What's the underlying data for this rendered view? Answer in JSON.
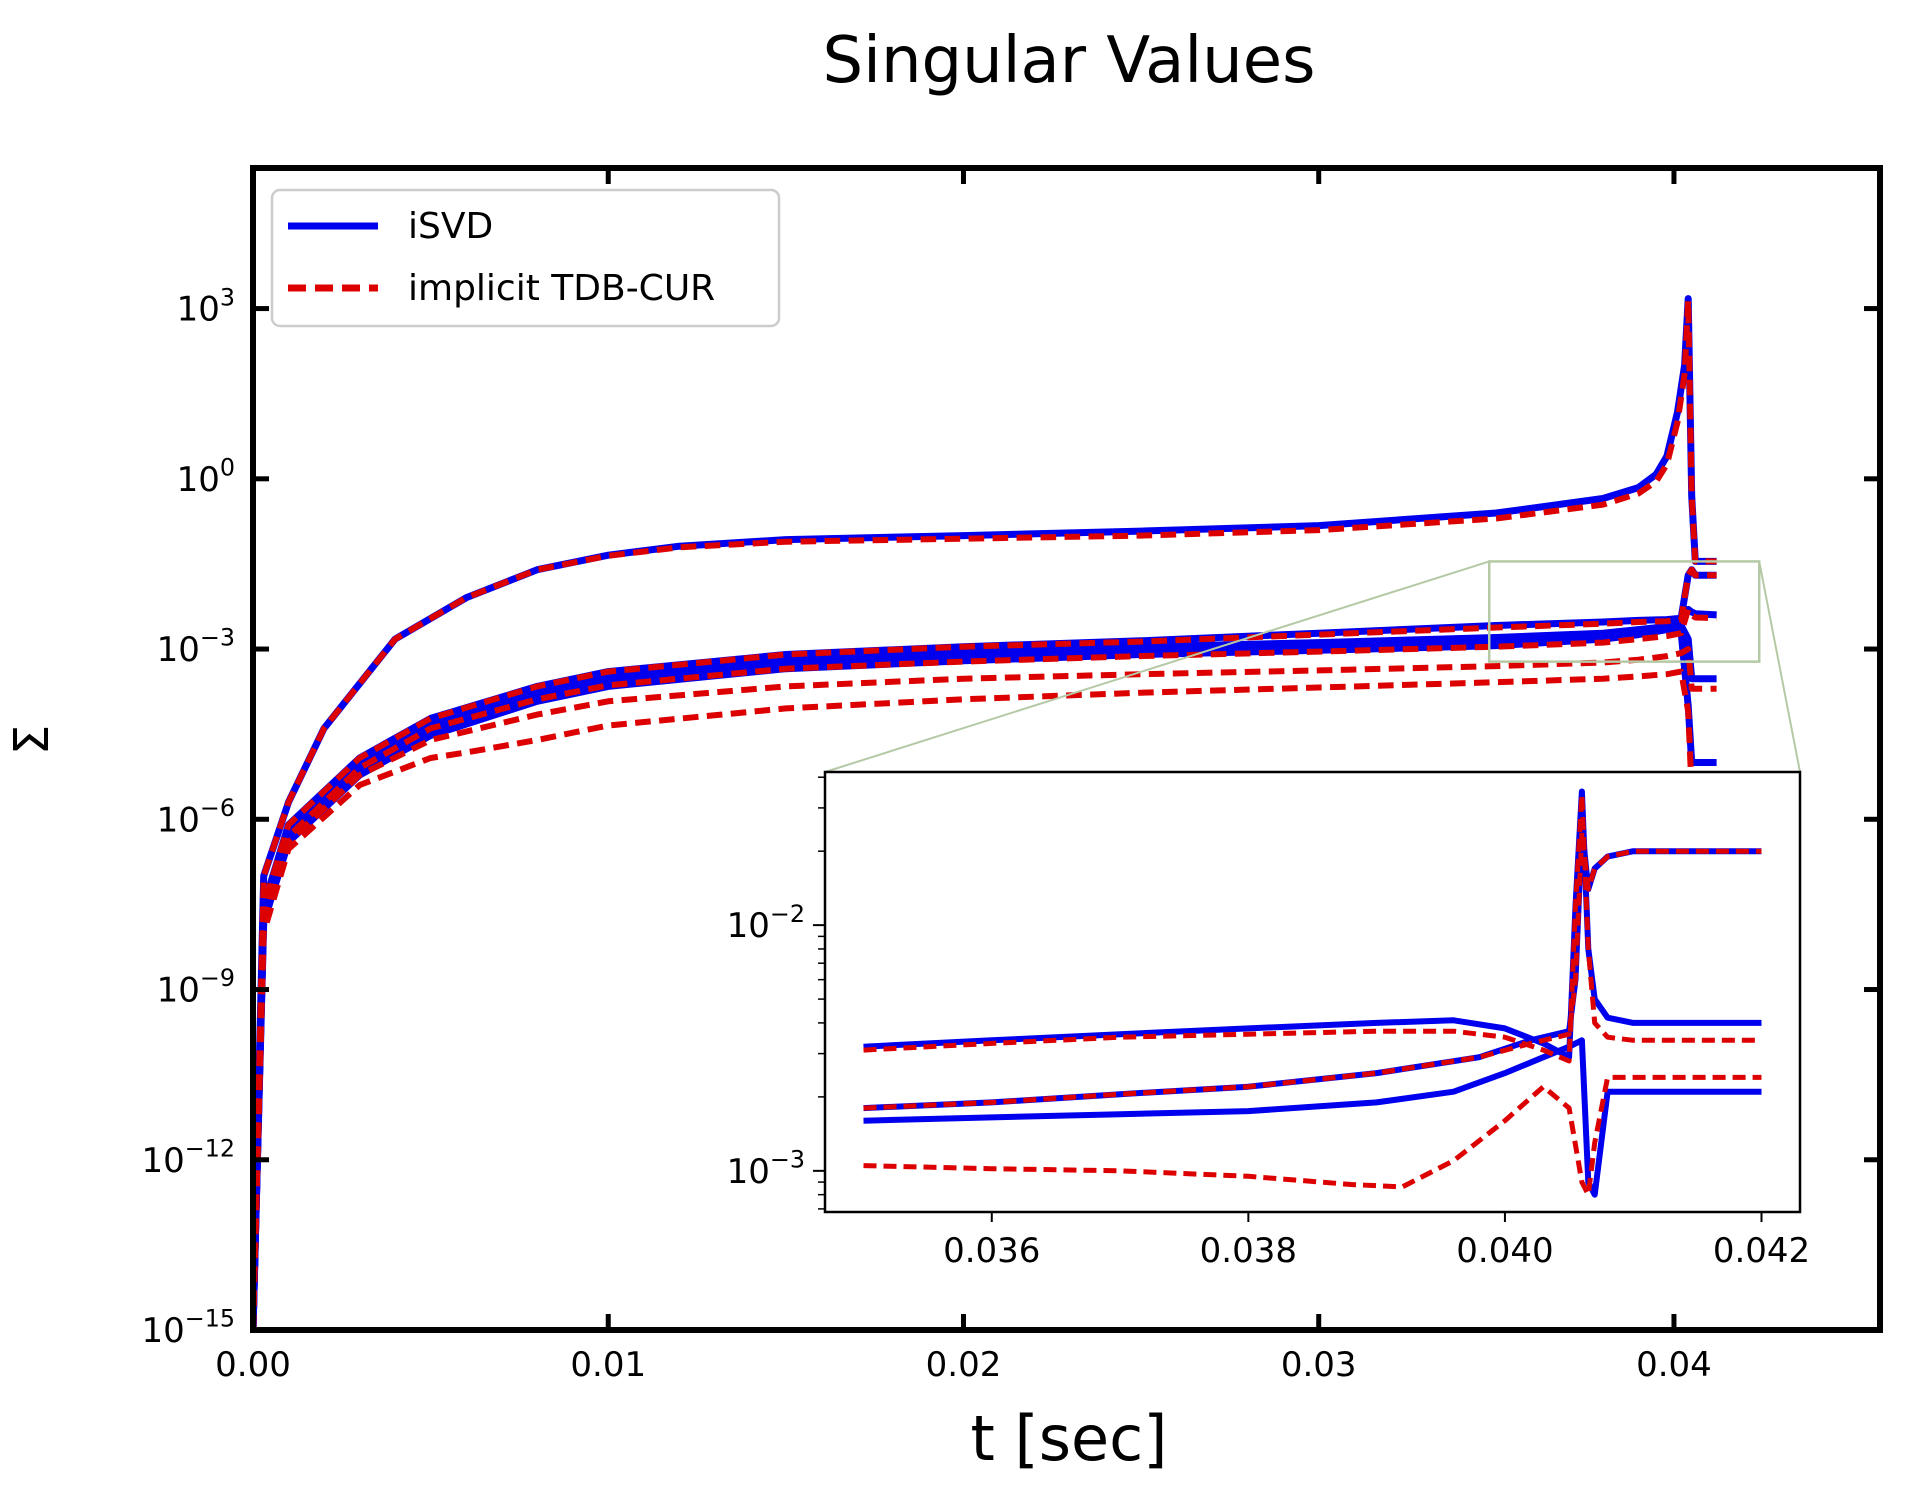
{
  "chart_data": {
    "type": "line",
    "title": "Singular Values",
    "xlabel": "t [sec]",
    "ylabel": "Σ",
    "yscale": "log",
    "xlim": [
      0.0,
      0.0458
    ],
    "ylim": [
      1e-15,
      300000.0
    ],
    "x_ticks": [
      0.0,
      0.01,
      0.02,
      0.03,
      0.04
    ],
    "x_tick_labels": [
      "0.00",
      "0.01",
      "0.02",
      "0.03",
      "0.04"
    ],
    "y_ticks": [
      1e-15,
      1e-12,
      1e-09,
      1e-06,
      0.001,
      1,
      1000.0
    ],
    "y_tick_labels": [
      {
        "base": "10",
        "exp": "−15"
      },
      {
        "base": "10",
        "exp": "−12"
      },
      {
        "base": "10",
        "exp": "−9"
      },
      {
        "base": "10",
        "exp": "−6"
      },
      {
        "base": "10",
        "exp": "−3"
      },
      {
        "base": "10",
        "exp": "0"
      },
      {
        "base": "10",
        "exp": "3"
      }
    ],
    "legend": {
      "position": "top-left",
      "entries": [
        {
          "label": "iSVD",
          "color": "#0000ee",
          "style": "solid"
        },
        {
          "label": "implicit TDB-CUR",
          "color": "#dd0000",
          "style": "dashed"
        }
      ]
    },
    "series": [
      {
        "name": "iSVD σ1",
        "style": "solid",
        "color": "#0000ee",
        "x": [
          0,
          0.0003,
          0.001,
          0.002,
          0.004,
          0.006,
          0.008,
          0.01,
          0.012,
          0.015,
          0.02,
          0.025,
          0.03,
          0.035,
          0.038,
          0.039,
          0.0395,
          0.0398,
          0.0401,
          0.0403,
          0.0404,
          0.0405,
          0.0406,
          0.0412
        ],
        "y": [
          1e-15,
          1e-07,
          2e-06,
          4e-05,
          0.0015,
          0.008,
          0.025,
          0.045,
          0.065,
          0.085,
          0.1,
          0.12,
          0.15,
          0.25,
          0.45,
          0.7,
          1.2,
          2.5,
          15,
          100,
          1500,
          0.5,
          0.035,
          0.035
        ]
      },
      {
        "name": "iSVD σ2",
        "style": "solid",
        "color": "#0000ee",
        "x": [
          0,
          0.0003,
          0.001,
          0.003,
          0.005,
          0.008,
          0.01,
          0.015,
          0.02,
          0.025,
          0.03,
          0.035,
          0.038,
          0.039,
          0.0398,
          0.0402,
          0.0404,
          0.0405,
          0.0406,
          0.0412
        ],
        "y": [
          1e-15,
          3e-08,
          8e-07,
          1.2e-05,
          6e-05,
          0.00022,
          0.0004,
          0.0008,
          0.0011,
          0.0014,
          0.0019,
          0.0026,
          0.003,
          0.0032,
          0.0033,
          0.0035,
          0.02,
          0.025,
          0.02,
          0.02
        ]
      },
      {
        "name": "iSVD σ3",
        "style": "solid",
        "color": "#0000ee",
        "x": [
          0,
          0.0003,
          0.001,
          0.003,
          0.005,
          0.008,
          0.01,
          0.015,
          0.02,
          0.025,
          0.03,
          0.035,
          0.038,
          0.039,
          0.0398,
          0.0402,
          0.0404,
          0.0405,
          0.0406,
          0.0412
        ],
        "y": [
          1e-15,
          2.5e-08,
          6e-07,
          1e-05,
          5e-05,
          0.00018,
          0.00032,
          0.00065,
          0.0009,
          0.0011,
          0.0013,
          0.0016,
          0.0019,
          0.0022,
          0.0025,
          0.0028,
          0.005,
          0.0045,
          0.0042,
          0.004
        ]
      },
      {
        "name": "iSVD σ4",
        "style": "solid",
        "color": "#0000ee",
        "x": [
          0,
          0.0003,
          0.001,
          0.003,
          0.005,
          0.008,
          0.01,
          0.015,
          0.02,
          0.025,
          0.03,
          0.035,
          0.038,
          0.039,
          0.0398,
          0.0402,
          0.0404,
          0.0405,
          0.0406,
          0.0412
        ],
        "y": [
          1e-15,
          2e-08,
          5e-07,
          8e-06,
          4e-05,
          0.00015,
          0.00027,
          0.00055,
          0.00075,
          0.00095,
          0.0011,
          0.00135,
          0.0017,
          0.002,
          0.0024,
          0.0026,
          0.0015,
          0.0003,
          0.0003,
          0.0003
        ]
      },
      {
        "name": "iSVD σ5",
        "style": "solid",
        "color": "#0000ee",
        "x": [
          0,
          0.0003,
          0.001,
          0.003,
          0.005,
          0.008,
          0.01,
          0.015,
          0.02,
          0.025,
          0.03,
          0.035,
          0.038,
          0.039,
          0.0398,
          0.0402,
          0.0404,
          0.0405,
          0.0406,
          0.0412
        ],
        "y": [
          1e-15,
          1.5e-08,
          4e-07,
          6e-06,
          3e-05,
          0.00012,
          0.00022,
          0.00045,
          0.00062,
          0.0008,
          0.00095,
          0.00115,
          0.0015,
          0.0018,
          0.0022,
          0.002,
          0.0001,
          1e-05,
          1e-05,
          1e-05
        ]
      },
      {
        "name": "TDB-CUR σ1",
        "style": "dashed",
        "color": "#dd0000",
        "x": [
          0,
          0.0003,
          0.001,
          0.002,
          0.004,
          0.006,
          0.008,
          0.01,
          0.012,
          0.015,
          0.02,
          0.025,
          0.03,
          0.035,
          0.038,
          0.039,
          0.0395,
          0.0398,
          0.0401,
          0.0403,
          0.0404,
          0.0405,
          0.0406,
          0.0412
        ],
        "y": [
          1e-15,
          1e-07,
          2e-06,
          4e-05,
          0.0015,
          0.008,
          0.025,
          0.044,
          0.062,
          0.078,
          0.088,
          0.1,
          0.125,
          0.2,
          0.35,
          0.55,
          0.9,
          1.8,
          10,
          70,
          1400,
          0.5,
          0.035,
          0.035
        ]
      },
      {
        "name": "TDB-CUR σ2",
        "style": "dashed",
        "color": "#dd0000",
        "x": [
          0,
          0.0003,
          0.001,
          0.003,
          0.005,
          0.008,
          0.01,
          0.015,
          0.02,
          0.025,
          0.03,
          0.035,
          0.038,
          0.039,
          0.0398,
          0.0402,
          0.0404,
          0.0405,
          0.0406,
          0.0412
        ],
        "y": [
          1e-15,
          3e-08,
          8e-07,
          1.2e-05,
          6e-05,
          0.00022,
          0.0004,
          0.0008,
          0.0011,
          0.00135,
          0.0018,
          0.0024,
          0.0028,
          0.003,
          0.0031,
          0.0033,
          0.02,
          0.025,
          0.02,
          0.02
        ]
      },
      {
        "name": "TDB-CUR σ3",
        "style": "dashed",
        "color": "#dd0000",
        "x": [
          0,
          0.0003,
          0.001,
          0.003,
          0.005,
          0.008,
          0.01,
          0.015,
          0.02,
          0.025,
          0.03,
          0.035,
          0.038,
          0.039,
          0.0398,
          0.0402,
          0.0404,
          0.0405,
          0.0406,
          0.0412
        ],
        "y": [
          1e-15,
          2e-08,
          5e-07,
          8e-06,
          4e-05,
          0.00013,
          0.00023,
          0.00045,
          0.0006,
          0.00075,
          0.0009,
          0.0011,
          0.0013,
          0.0015,
          0.0017,
          0.0019,
          0.005,
          0.004,
          0.0036,
          0.0035
        ]
      },
      {
        "name": "TDB-CUR σ4",
        "style": "dashed",
        "color": "#dd0000",
        "x": [
          0,
          0.0003,
          0.001,
          0.003,
          0.005,
          0.008,
          0.01,
          0.015,
          0.02,
          0.025,
          0.03,
          0.035,
          0.038,
          0.039,
          0.0398,
          0.0402,
          0.0404,
          0.0405,
          0.0406,
          0.0412
        ],
        "y": [
          1e-15,
          1.5e-08,
          4e-07,
          6e-06,
          2.5e-05,
          7e-05,
          0.00012,
          0.00022,
          0.0003,
          0.00036,
          0.00042,
          0.0005,
          0.00058,
          0.00065,
          0.00075,
          0.00085,
          0.001,
          0.0002,
          0.0002,
          0.0002
        ]
      },
      {
        "name": "TDB-CUR σ5",
        "style": "dashed",
        "color": "#dd0000",
        "x": [
          0,
          0.0003,
          0.001,
          0.003,
          0.005,
          0.006,
          0.008,
          0.01,
          0.015,
          0.02,
          0.025,
          0.03,
          0.035,
          0.038,
          0.039,
          0.0398,
          0.0402,
          0.0404,
          0.0405,
          0.0406,
          0.0412
        ],
        "y": [
          1e-15,
          1e-08,
          3e-07,
          4e-06,
          1.2e-05,
          1.5e-05,
          2.5e-05,
          4.5e-05,
          9e-05,
          0.00013,
          0.00017,
          0.00021,
          0.00026,
          0.0003,
          0.00033,
          0.00036,
          0.0004,
          8e-05,
          3e-06,
          3e-06,
          3e-06
        ]
      }
    ],
    "inset": {
      "yscale": "log",
      "xlim": [
        0.0347,
        0.0423
      ],
      "ylim": [
        0.00068,
        0.042
      ],
      "x_ticks": [
        0.036,
        0.038,
        0.04,
        0.042
      ],
      "x_tick_labels": [
        "0.036",
        "0.038",
        "0.040",
        "0.042"
      ],
      "y_ticks": [
        0.001,
        0.01
      ],
      "y_tick_labels": [
        {
          "base": "10",
          "exp": "−3"
        },
        {
          "base": "10",
          "exp": "−2"
        }
      ],
      "zoom_region": {
        "x": [
          0.0348,
          0.0424
        ],
        "y": [
          0.0006,
          0.035
        ]
      },
      "series": [
        {
          "name": "iSVD a",
          "style": "solid",
          "color": "#0000ee",
          "x": [
            0.035,
            0.036,
            0.037,
            0.038,
            0.039,
            0.0396,
            0.04,
            0.0403,
            0.0405,
            0.04055,
            0.0406,
            0.04065,
            0.0407,
            0.0408,
            0.041,
            0.0415,
            0.042
          ],
          "y": [
            0.0032,
            0.0034,
            0.0036,
            0.0038,
            0.004,
            0.0041,
            0.0038,
            0.0033,
            0.0029,
            0.012,
            0.035,
            0.008,
            0.005,
            0.0042,
            0.004,
            0.004,
            0.004
          ]
        },
        {
          "name": "iSVD b",
          "style": "solid",
          "color": "#0000ee",
          "x": [
            0.035,
            0.036,
            0.037,
            0.038,
            0.039,
            0.0398,
            0.0402,
            0.0405,
            0.04055,
            0.0406,
            0.04065,
            0.0407,
            0.0408,
            0.041,
            0.0415,
            0.042
          ],
          "y": [
            0.0018,
            0.0019,
            0.00205,
            0.0022,
            0.0025,
            0.0029,
            0.0034,
            0.0037,
            0.006,
            0.025,
            0.014,
            0.017,
            0.019,
            0.02,
            0.02,
            0.02
          ]
        },
        {
          "name": "iSVD c",
          "style": "solid",
          "color": "#0000ee",
          "x": [
            0.035,
            0.036,
            0.037,
            0.038,
            0.039,
            0.0396,
            0.04,
            0.0403,
            0.0405,
            0.0406,
            0.04065,
            0.0407,
            0.0408,
            0.041,
            0.0415,
            0.042
          ],
          "y": [
            0.0016,
            0.00165,
            0.0017,
            0.00175,
            0.0019,
            0.0021,
            0.0025,
            0.0029,
            0.0032,
            0.0034,
            0.0009,
            0.0008,
            0.0021,
            0.0021,
            0.0021,
            0.0021
          ]
        },
        {
          "name": "TDB-CUR a",
          "style": "dashed",
          "color": "#dd0000",
          "x": [
            0.035,
            0.036,
            0.037,
            0.038,
            0.039,
            0.0396,
            0.04,
            0.0403,
            0.0405,
            0.04055,
            0.0406,
            0.04065,
            0.0407,
            0.0408,
            0.041,
            0.0415,
            0.042
          ],
          "y": [
            0.0031,
            0.0033,
            0.0035,
            0.0036,
            0.0037,
            0.0037,
            0.0035,
            0.0031,
            0.0028,
            0.012,
            0.034,
            0.008,
            0.004,
            0.0035,
            0.0034,
            0.0034,
            0.0034
          ]
        },
        {
          "name": "TDB-CUR b",
          "style": "dashed",
          "color": "#dd0000",
          "x": [
            0.035,
            0.036,
            0.037,
            0.038,
            0.039,
            0.0398,
            0.0402,
            0.0405,
            0.04055,
            0.0406,
            0.04065,
            0.0407,
            0.0408,
            0.041,
            0.0415,
            0.042
          ],
          "y": [
            0.0018,
            0.0019,
            0.00205,
            0.0022,
            0.0025,
            0.0029,
            0.0033,
            0.0036,
            0.006,
            0.024,
            0.014,
            0.017,
            0.019,
            0.02,
            0.02,
            0.02
          ]
        },
        {
          "name": "TDB-CUR c",
          "style": "dashed",
          "color": "#dd0000",
          "x": [
            0.035,
            0.036,
            0.037,
            0.038,
            0.0388,
            0.0392,
            0.0396,
            0.04,
            0.0403,
            0.0405,
            0.0406,
            0.04065,
            0.0407,
            0.0408,
            0.041,
            0.0415,
            0.042
          ],
          "y": [
            0.00105,
            0.00102,
            0.001,
            0.00095,
            0.00088,
            0.00086,
            0.0011,
            0.0016,
            0.0022,
            0.0018,
            0.0009,
            0.0008,
            0.0013,
            0.0024,
            0.0024,
            0.0024,
            0.0024
          ]
        }
      ]
    }
  }
}
